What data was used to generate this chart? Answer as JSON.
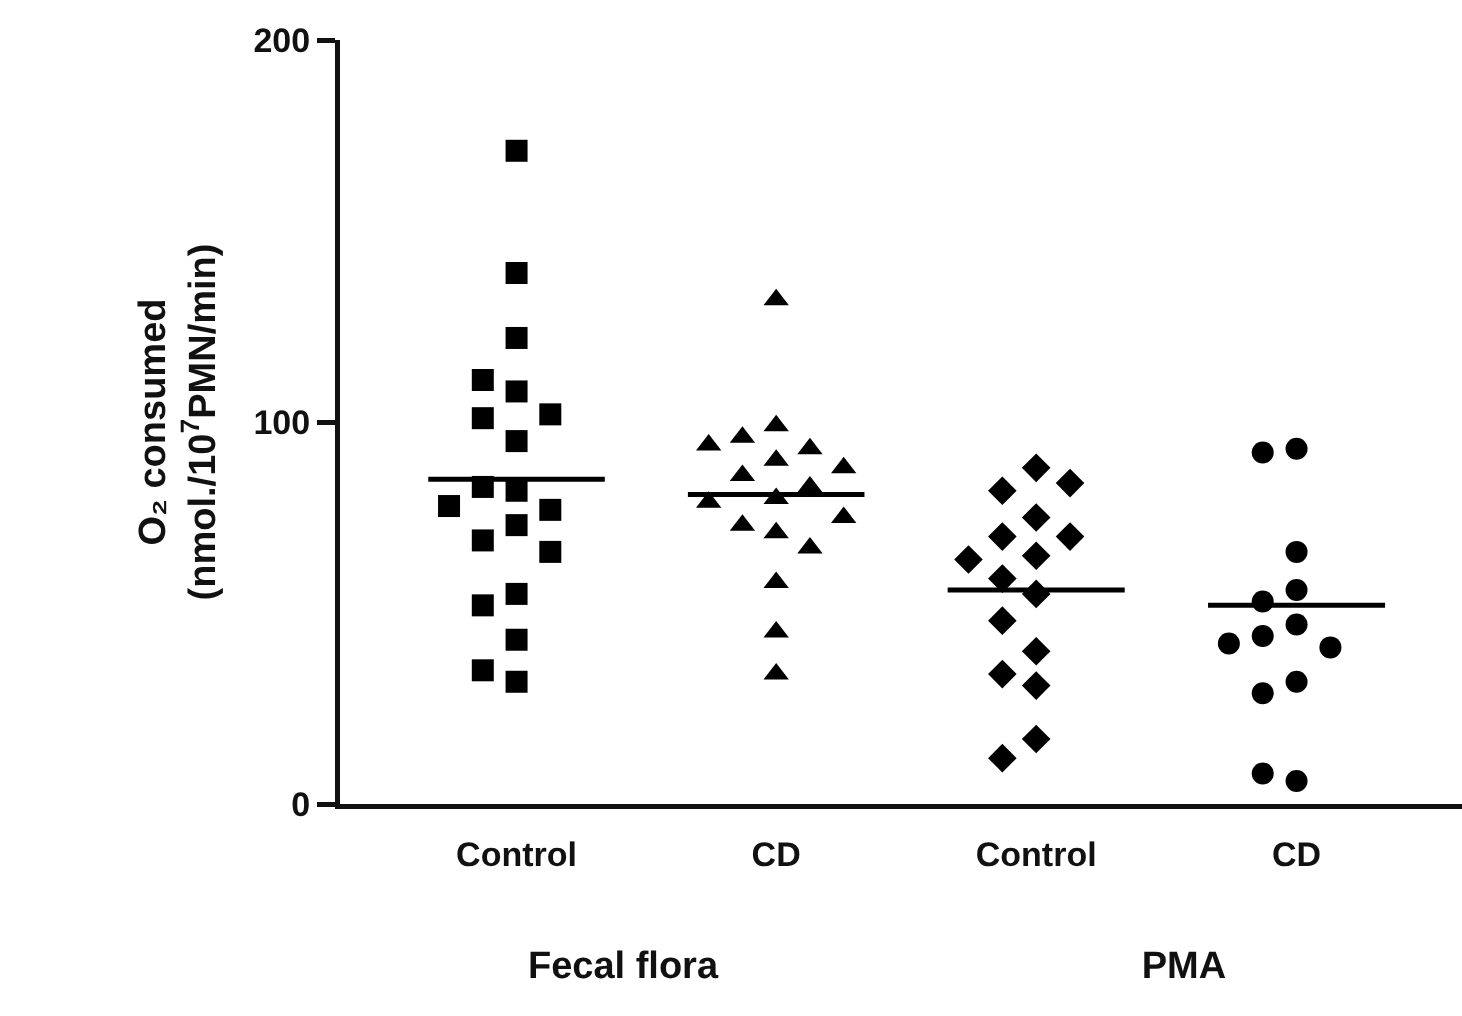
{
  "chart_data": [
    {
      "type": "scatter",
      "xlabel": "Fecal flora",
      "ylabel": "O₂ consumed\n(nmol./10$^{7}$PMN/min)",
      "categories": [
        "Control",
        "CD"
      ],
      "ylim": [
        0,
        200
      ],
      "yticks": [
        0,
        100,
        200
      ],
      "grid": false,
      "series": [
        {
          "color": "#000000",
          "marker": "square",
          "x": [
            "Control",
            "Control",
            "Control",
            "Control",
            "Control",
            "Control",
            "Control",
            "Control",
            "Control",
            "Control",
            "Control",
            "Control",
            "Control",
            "Control",
            "Control",
            "Control",
            "Control",
            "Control",
            "Control",
            "Control"
          ],
          "values": [
            171,
            139,
            122,
            108,
            111,
            101,
            102,
            95,
            82,
            83,
            77,
            78,
            73,
            69,
            66,
            55,
            52,
            43,
            35,
            32
          ]
        },
        {
          "color": "#000000",
          "marker": "triangle",
          "x": [
            "CD",
            "CD",
            "CD",
            "CD",
            "CD",
            "CD",
            "CD",
            "CD",
            "CD",
            "CD",
            "CD",
            "CD",
            "CD",
            "CD",
            "CD",
            "CD",
            "CD",
            "CD"
          ],
          "values": [
            132,
            99,
            96,
            93,
            94,
            90,
            88,
            86,
            83,
            80,
            79,
            73,
            71,
            75,
            67,
            58,
            45,
            34
          ]
        }
      ],
      "ref_lines": [
        {
          "axis": "y",
          "value": 85,
          "color": "#000000",
          "line_style": "solid"
        },
        {
          "axis": "y",
          "value": 81,
          "color": "#000000",
          "line_style": "solid"
        }
      ]
    },
    {
      "type": "scatter",
      "xlabel": "PMA",
      "categories": [
        "Control",
        "CD"
      ],
      "ylim": [
        0,
        200
      ],
      "yticks": [
        0,
        100,
        200
      ],
      "tick_labels": "x",
      "grid": false,
      "series": [
        {
          "color": "#000000",
          "marker": "diamond",
          "x": [
            "Control",
            "Control",
            "Control",
            "Control",
            "Control",
            "Control",
            "Control",
            "Control",
            "Control",
            "Control",
            "Control",
            "Control",
            "Control",
            "Control",
            "Control",
            "Control"
          ],
          "values": [
            88,
            82,
            84,
            75,
            70,
            70,
            65,
            64,
            59,
            55,
            48,
            40,
            34,
            31,
            17,
            12
          ]
        },
        {
          "color": "#000000",
          "marker": "circle",
          "x": [
            "CD",
            "CD",
            "CD",
            "CD",
            "CD",
            "CD",
            "CD",
            "CD",
            "CD",
            "CD",
            "CD",
            "CD",
            "CD"
          ],
          "values": [
            93,
            92,
            66,
            56,
            53,
            47,
            44,
            41,
            42,
            32,
            29,
            6,
            8
          ]
        }
      ],
      "ref_lines": [
        {
          "axis": "y",
          "value": 56,
          "color": "#000000",
          "line_style": "solid"
        },
        {
          "axis": "y",
          "value": 52,
          "color": "#000000",
          "line_style": "solid"
        }
      ]
    }
  ]
}
